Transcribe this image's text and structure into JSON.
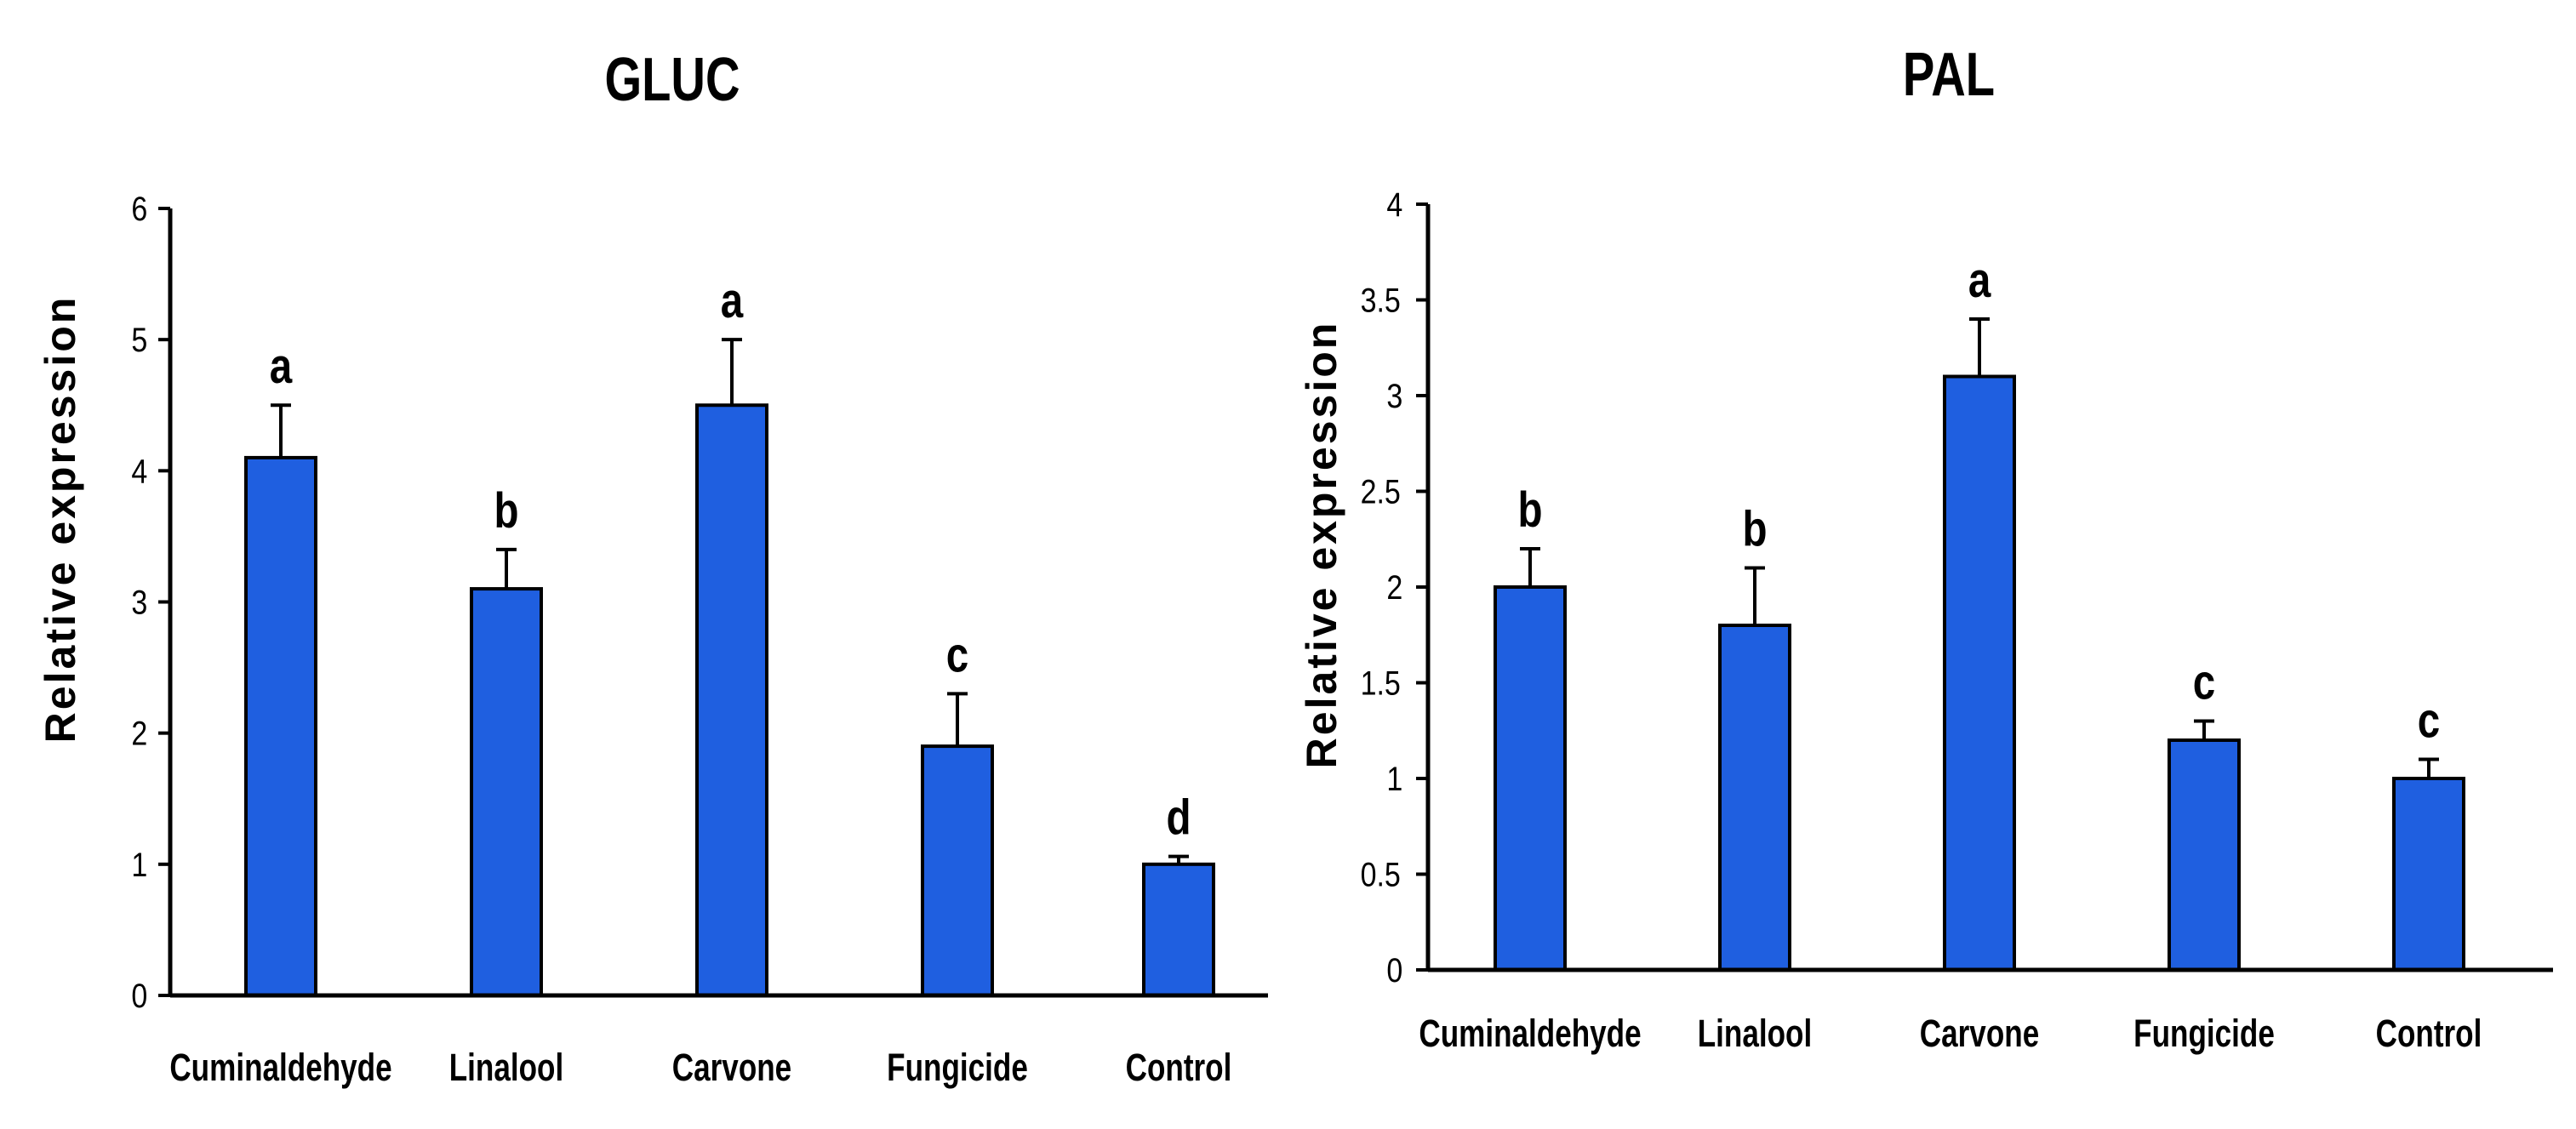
{
  "chart_data": [
    {
      "id": "gluc",
      "type": "bar",
      "title": "GLUC",
      "ylabel": "Relative expression",
      "xlabel": "",
      "ylim": [
        0,
        6
      ],
      "yticks": [
        "0",
        "1",
        "2",
        "3",
        "4",
        "5",
        "6"
      ],
      "categories": [
        "Cuminaldehyde",
        "Linalool",
        "Carvone",
        "Fungicide",
        "Control"
      ],
      "values": [
        4.1,
        3.1,
        4.5,
        1.9,
        1.0
      ],
      "error_upper": [
        4.5,
        3.4,
        5.0,
        2.3,
        1.06
      ],
      "significance": [
        "a",
        "b",
        "a",
        "c",
        "d"
      ],
      "bar_color": "#1f5fe0"
    },
    {
      "id": "pal",
      "type": "bar",
      "title": "PAL",
      "ylabel": "Relative expression",
      "xlabel": "",
      "ylim": [
        0,
        4
      ],
      "yticks": [
        "0",
        "0.5",
        "1",
        "1.5",
        "2",
        "2.5",
        "3",
        "3.5",
        "4"
      ],
      "categories": [
        "Cuminaldehyde",
        "Linalool",
        "Carvone",
        "Fungicide",
        "Control"
      ],
      "values": [
        2.0,
        1.8,
        3.1,
        1.2,
        1.0
      ],
      "error_upper": [
        2.2,
        2.1,
        3.4,
        1.3,
        1.1
      ],
      "significance": [
        "b",
        "b",
        "a",
        "c",
        "c"
      ],
      "bar_color": "#1f5fe0"
    }
  ]
}
